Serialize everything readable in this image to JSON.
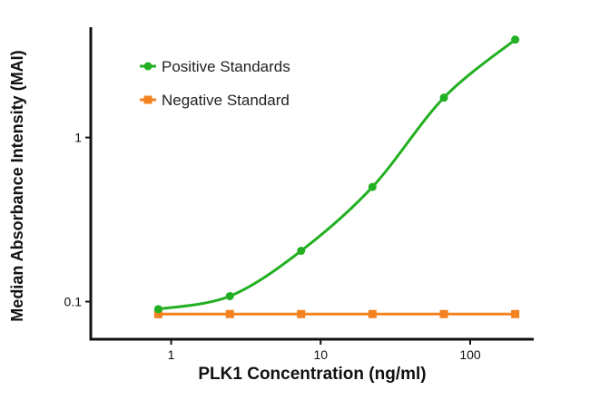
{
  "chart_data": {
    "type": "line",
    "title": "",
    "xlabel": "PLK1 Concentration (ng/ml)",
    "ylabel": "Median Absorbance Intensity (MAI)",
    "xscale": "log",
    "yscale": "log",
    "xlim": [
      0.29,
      266
    ],
    "ylim": [
      0.059,
      4.7
    ],
    "xticks": [
      {
        "value": 1,
        "label": "1"
      },
      {
        "value": 10,
        "label": "10"
      },
      {
        "value": 100,
        "label": "100"
      }
    ],
    "yticks": [
      {
        "value": 0.1,
        "label": "0.1"
      },
      {
        "value": 1,
        "label": "1"
      }
    ],
    "grid": false,
    "legend_position": "top-left",
    "series": [
      {
        "name": "Positive Standards",
        "color": "#22b022",
        "marker": "circle",
        "curve": "smooth",
        "x": [
          0.82,
          2.47,
          7.4,
          22.2,
          66.7,
          200
        ],
        "y": [
          0.09,
          0.108,
          0.204,
          0.5,
          1.75,
          3.95
        ]
      },
      {
        "name": "Negative Standard",
        "color": "#f58220",
        "marker": "square",
        "curve": "straight",
        "x": [
          0.82,
          2.47,
          7.4,
          22.2,
          66.7,
          200
        ],
        "y": [
          0.084,
          0.084,
          0.084,
          0.084,
          0.084,
          0.084
        ]
      }
    ]
  }
}
